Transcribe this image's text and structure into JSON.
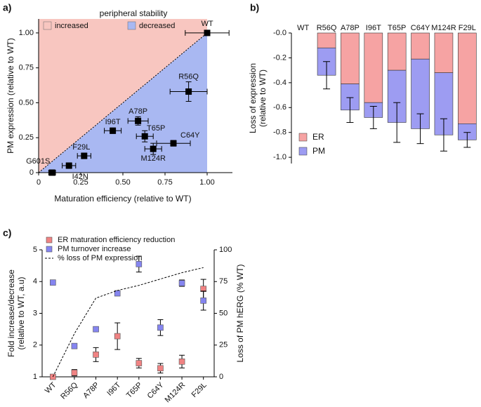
{
  "chart_data": [
    {
      "type": "scatter",
      "panel_label": "a)",
      "title": "peripheral stability",
      "xlabel": "Maturation efficiency (relative to WT)",
      "ylabel": "PM expression (relative to WT)",
      "legend": [
        {
          "name": "increased",
          "color": "#f8c6c0"
        },
        {
          "name": "decreased",
          "color": "#a9b8f2"
        }
      ],
      "diagonal": true,
      "xlim": [
        0,
        1.15
      ],
      "ylim": [
        0,
        1.1
      ],
      "xticks": [
        0,
        0.25,
        {
          "value": 0.5,
          "label": "0.50"
        },
        0.75,
        {
          "value": 1,
          "label": "1.00"
        }
      ],
      "yticks": [
        0,
        0.25,
        {
          "value": 0.5,
          "label": "0.50"
        },
        0.75,
        {
          "value": 1,
          "label": "1.00"
        }
      ],
      "labels": [
        "WT",
        "R56Q",
        "A78P",
        "I96T",
        "T65P",
        "C64Y",
        "M124R",
        "F29L",
        "I42N",
        "G601S"
      ],
      "x": [
        1.0,
        0.89,
        0.59,
        0.44,
        0.63,
        0.8,
        0.68,
        0.27,
        0.18,
        0.08
      ],
      "values": [
        1.0,
        0.58,
        0.37,
        0.3,
        0.26,
        0.21,
        0.17,
        0.12,
        0.05,
        0.0
      ],
      "xerr": [
        0.13,
        0.11,
        0.06,
        0.05,
        0.05,
        0.1,
        0.05,
        0.04,
        0.04,
        0.02
      ],
      "yerr": [
        0.01,
        0.07,
        0.03,
        0.02,
        0.04,
        0.02,
        0.04,
        0.02,
        0.02,
        0.01
      ],
      "color": "#000000"
    },
    {
      "type": "bar",
      "panel_label": "b)",
      "ylabel": [
        "Loss of expression",
        "(relative to WT)"
      ],
      "categories": [
        "WT",
        "R56Q",
        "A78P",
        "I96T",
        "T65P",
        "C64Y",
        "M124R",
        "F29L"
      ],
      "series": [
        {
          "name": "ER",
          "color": "#f6a3a3",
          "values": [
            0,
            -0.12,
            -0.41,
            -0.56,
            -0.3,
            -0.21,
            -0.32,
            -0.73
          ]
        },
        {
          "name": "PM",
          "color": "#9d9cf2",
          "values": [
            0,
            -0.22,
            -0.21,
            -0.12,
            -0.42,
            -0.56,
            -0.5,
            -0.13
          ],
          "errors": [
            0,
            0.11,
            0.1,
            0.09,
            0.16,
            0.12,
            0.13,
            0.06
          ]
        }
      ],
      "ylim": [
        -1.05,
        0
      ],
      "yticks": [
        {
          "value": 0,
          "label": "-0.0"
        },
        -0.2,
        -0.4,
        -0.6,
        -0.8,
        {
          "value": -1,
          "label": "-1.0"
        }
      ]
    },
    {
      "type": "dot",
      "panel_label": "c)",
      "ylabel": [
        "Fold increase/decrease",
        "(relative to WT, a.u)"
      ],
      "y2label": "Loss of PM hERG (% WT)",
      "categories": [
        "WT",
        "R56Q",
        "A78P",
        "I96T",
        "T65P",
        "C64Y",
        "M124R",
        "F29L"
      ],
      "series": [
        {
          "name": "ER maturation efficiency reduction",
          "color": "#f08383",
          "values": [
            1.0,
            1.13,
            1.7,
            2.28,
            1.43,
            1.27,
            1.48,
            3.77
          ],
          "errors": [
            0,
            0.1,
            0.22,
            0.42,
            0.15,
            0.15,
            0.2,
            0.3
          ]
        },
        {
          "name": "PM turnover increase",
          "color": "#8585f0",
          "values": [
            3.97,
            1.97,
            2.5,
            3.63,
            4.55,
            2.55,
            3.95,
            3.4
          ],
          "errors": [
            0,
            0.08,
            0.05,
            0.08,
            0.25,
            0.25,
            0.1,
            0.3
          ]
        },
        {
          "name": "% loss of PM expression",
          "color": "#000000",
          "axis": "y2",
          "dashed": true,
          "values": [
            0,
            34,
            62,
            68,
            72,
            77,
            82,
            86
          ]
        }
      ],
      "ylim": [
        1,
        5
      ],
      "yticks": [
        1,
        2,
        3,
        4,
        5
      ],
      "y2lim": [
        0,
        100
      ],
      "y2ticks": [
        0,
        25,
        50,
        75,
        100
      ]
    }
  ]
}
